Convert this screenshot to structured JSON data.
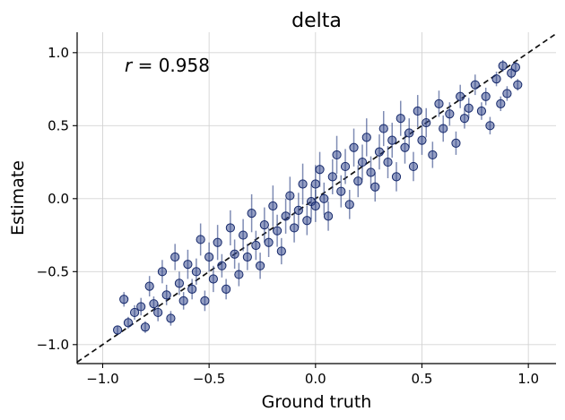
{
  "chart_data": {
    "type": "scatter",
    "title": "delta",
    "xlabel": "Ground truth",
    "ylabel": "Estimate",
    "xlim": [
      -1.12,
      1.13
    ],
    "ylim": [
      -1.13,
      1.14
    ],
    "xticks": [
      -1.0,
      -0.5,
      0.0,
      0.5,
      1.0
    ],
    "xtick_labels": [
      "−1.0",
      "−0.5",
      "0.0",
      "0.5",
      "1.0"
    ],
    "yticks": [
      -1.0,
      -0.5,
      0.0,
      0.5,
      1.0
    ],
    "ytick_labels": [
      "−1.0",
      "−0.5",
      "0.0",
      "0.5",
      "1.0"
    ],
    "grid": true,
    "reference_line": "identity y = x (dashed)",
    "annotation": {
      "var": "r",
      "eq": " = 0.958"
    },
    "colors": {
      "marker": "#2b3f87",
      "edge": "#16296b",
      "errorbar": "#3a4f8c",
      "line": "#111111"
    },
    "series": [
      {
        "points": [
          {
            "x": -0.93,
            "y": -0.9,
            "err": 0.03
          },
          {
            "x": -0.9,
            "y": -0.69,
            "err": 0.05
          },
          {
            "x": -0.88,
            "y": -0.85,
            "err": 0.04
          },
          {
            "x": -0.85,
            "y": -0.78,
            "err": 0.05
          },
          {
            "x": -0.82,
            "y": -0.74,
            "err": 0.06
          },
          {
            "x": -0.8,
            "y": -0.88,
            "err": 0.04
          },
          {
            "x": -0.78,
            "y": -0.6,
            "err": 0.07
          },
          {
            "x": -0.76,
            "y": -0.72,
            "err": 0.05
          },
          {
            "x": -0.74,
            "y": -0.78,
            "err": 0.06
          },
          {
            "x": -0.72,
            "y": -0.5,
            "err": 0.08
          },
          {
            "x": -0.7,
            "y": -0.66,
            "err": 0.07
          },
          {
            "x": -0.68,
            "y": -0.82,
            "err": 0.05
          },
          {
            "x": -0.66,
            "y": -0.4,
            "err": 0.09
          },
          {
            "x": -0.64,
            "y": -0.58,
            "err": 0.08
          },
          {
            "x": -0.62,
            "y": -0.7,
            "err": 0.06
          },
          {
            "x": -0.6,
            "y": -0.45,
            "err": 0.1
          },
          {
            "x": -0.58,
            "y": -0.62,
            "err": 0.07
          },
          {
            "x": -0.56,
            "y": -0.5,
            "err": 0.09
          },
          {
            "x": -0.54,
            "y": -0.28,
            "err": 0.11
          },
          {
            "x": -0.52,
            "y": -0.7,
            "err": 0.07
          },
          {
            "x": -0.5,
            "y": -0.4,
            "err": 0.1
          },
          {
            "x": -0.48,
            "y": -0.55,
            "err": 0.09
          },
          {
            "x": -0.46,
            "y": -0.3,
            "err": 0.12
          },
          {
            "x": -0.44,
            "y": -0.46,
            "err": 0.08
          },
          {
            "x": -0.42,
            "y": -0.62,
            "err": 0.07
          },
          {
            "x": -0.4,
            "y": -0.2,
            "err": 0.12
          },
          {
            "x": -0.38,
            "y": -0.38,
            "err": 0.1
          },
          {
            "x": -0.36,
            "y": -0.52,
            "err": 0.08
          },
          {
            "x": -0.34,
            "y": -0.25,
            "err": 0.11
          },
          {
            "x": -0.32,
            "y": -0.4,
            "err": 0.09
          },
          {
            "x": -0.3,
            "y": -0.1,
            "err": 0.13
          },
          {
            "x": -0.28,
            "y": -0.32,
            "err": 0.1
          },
          {
            "x": -0.26,
            "y": -0.46,
            "err": 0.09
          },
          {
            "x": -0.24,
            "y": -0.18,
            "err": 0.12
          },
          {
            "x": -0.22,
            "y": -0.3,
            "err": 0.1
          },
          {
            "x": -0.2,
            "y": -0.05,
            "err": 0.14
          },
          {
            "x": -0.18,
            "y": -0.22,
            "err": 0.11
          },
          {
            "x": -0.16,
            "y": -0.36,
            "err": 0.09
          },
          {
            "x": -0.14,
            "y": -0.12,
            "err": 0.12
          },
          {
            "x": -0.12,
            "y": 0.02,
            "err": 0.13
          },
          {
            "x": -0.1,
            "y": -0.2,
            "err": 0.1
          },
          {
            "x": -0.08,
            "y": -0.08,
            "err": 0.12
          },
          {
            "x": -0.06,
            "y": 0.1,
            "err": 0.14
          },
          {
            "x": -0.04,
            "y": -0.15,
            "err": 0.1
          },
          {
            "x": -0.02,
            "y": -0.02,
            "err": 0.12
          },
          {
            "x": 0.0,
            "y": 0.1,
            "err": 0.13
          },
          {
            "x": 0.0,
            "y": -0.05,
            "err": 0.11
          },
          {
            "x": 0.02,
            "y": 0.2,
            "err": 0.12
          },
          {
            "x": 0.04,
            "y": 0.0,
            "err": 0.11
          },
          {
            "x": 0.06,
            "y": -0.12,
            "err": 0.1
          },
          {
            "x": 0.08,
            "y": 0.15,
            "err": 0.12
          },
          {
            "x": 0.1,
            "y": 0.3,
            "err": 0.13
          },
          {
            "x": 0.12,
            "y": 0.05,
            "err": 0.11
          },
          {
            "x": 0.14,
            "y": 0.22,
            "err": 0.12
          },
          {
            "x": 0.16,
            "y": -0.04,
            "err": 0.1
          },
          {
            "x": 0.18,
            "y": 0.35,
            "err": 0.13
          },
          {
            "x": 0.2,
            "y": 0.12,
            "err": 0.11
          },
          {
            "x": 0.22,
            "y": 0.25,
            "err": 0.12
          },
          {
            "x": 0.24,
            "y": 0.42,
            "err": 0.13
          },
          {
            "x": 0.26,
            "y": 0.18,
            "err": 0.11
          },
          {
            "x": 0.28,
            "y": 0.08,
            "err": 0.1
          },
          {
            "x": 0.3,
            "y": 0.32,
            "err": 0.12
          },
          {
            "x": 0.32,
            "y": 0.48,
            "err": 0.12
          },
          {
            "x": 0.34,
            "y": 0.25,
            "err": 0.11
          },
          {
            "x": 0.36,
            "y": 0.4,
            "err": 0.12
          },
          {
            "x": 0.38,
            "y": 0.15,
            "err": 0.1
          },
          {
            "x": 0.4,
            "y": 0.55,
            "err": 0.12
          },
          {
            "x": 0.42,
            "y": 0.35,
            "err": 0.11
          },
          {
            "x": 0.44,
            "y": 0.45,
            "err": 0.1
          },
          {
            "x": 0.46,
            "y": 0.22,
            "err": 0.1
          },
          {
            "x": 0.48,
            "y": 0.6,
            "err": 0.11
          },
          {
            "x": 0.5,
            "y": 0.4,
            "err": 0.1
          },
          {
            "x": 0.52,
            "y": 0.52,
            "err": 0.1
          },
          {
            "x": 0.55,
            "y": 0.3,
            "err": 0.09
          },
          {
            "x": 0.58,
            "y": 0.65,
            "err": 0.09
          },
          {
            "x": 0.6,
            "y": 0.48,
            "err": 0.09
          },
          {
            "x": 0.63,
            "y": 0.58,
            "err": 0.08
          },
          {
            "x": 0.66,
            "y": 0.38,
            "err": 0.08
          },
          {
            "x": 0.68,
            "y": 0.7,
            "err": 0.08
          },
          {
            "x": 0.7,
            "y": 0.55,
            "err": 0.07
          },
          {
            "x": 0.72,
            "y": 0.62,
            "err": 0.07
          },
          {
            "x": 0.75,
            "y": 0.78,
            "err": 0.07
          },
          {
            "x": 0.78,
            "y": 0.6,
            "err": 0.06
          },
          {
            "x": 0.8,
            "y": 0.7,
            "err": 0.06
          },
          {
            "x": 0.82,
            "y": 0.5,
            "err": 0.06
          },
          {
            "x": 0.85,
            "y": 0.82,
            "err": 0.05
          },
          {
            "x": 0.87,
            "y": 0.65,
            "err": 0.05
          },
          {
            "x": 0.88,
            "y": 0.91,
            "err": 0.04
          },
          {
            "x": 0.9,
            "y": 0.72,
            "err": 0.05
          },
          {
            "x": 0.92,
            "y": 0.86,
            "err": 0.04
          },
          {
            "x": 0.94,
            "y": 0.9,
            "err": 0.04
          },
          {
            "x": 0.95,
            "y": 0.78,
            "err": 0.04
          }
        ]
      }
    ]
  }
}
